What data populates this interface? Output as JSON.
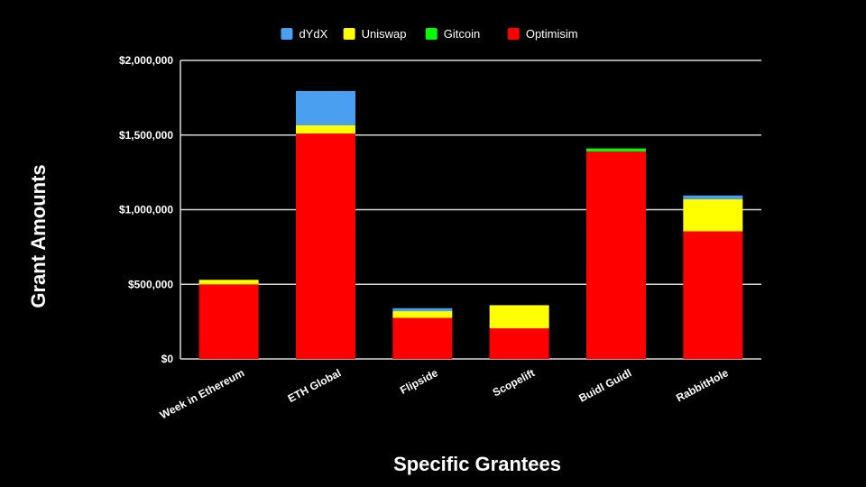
{
  "chart_data": {
    "type": "bar",
    "stacked": true,
    "title": "",
    "xlabel": "Specific Grantees",
    "ylabel": "Grant Amounts",
    "categories": [
      "Week in Ethereum",
      "ETH Global",
      "Flipside",
      "Scopelift",
      "Buidl Guidl",
      "RabbitHole"
    ],
    "series": [
      {
        "name": "Optimisim",
        "color": "#ff0000",
        "values": [
          500000,
          1510000,
          275000,
          205000,
          1390000,
          855000
        ]
      },
      {
        "name": "Gitcoin",
        "color": "#00ff00",
        "values": [
          0,
          0,
          0,
          0,
          20000,
          0
        ]
      },
      {
        "name": "Uniswap",
        "color": "#ffff00",
        "values": [
          30000,
          55000,
          45000,
          155000,
          0,
          215000
        ]
      },
      {
        "name": "dYdX",
        "color": "#4a9ff0",
        "values": [
          0,
          230000,
          20000,
          0,
          0,
          25000
        ]
      }
    ],
    "legend_order": [
      "dYdX",
      "Uniswap",
      "Gitcoin",
      "Optimisim"
    ],
    "legend_position": "top",
    "ylim": [
      0,
      2000000
    ],
    "yticks": [
      0,
      500000,
      1000000,
      1500000,
      2000000
    ],
    "ytick_labels": [
      "$0",
      "$500,000",
      "$1,000,000",
      "$1,500,000",
      "$2,000,000"
    ],
    "grid": true,
    "background": "#000000",
    "text_color": "#ffffff",
    "gridline_color": "#d9d9d9"
  }
}
